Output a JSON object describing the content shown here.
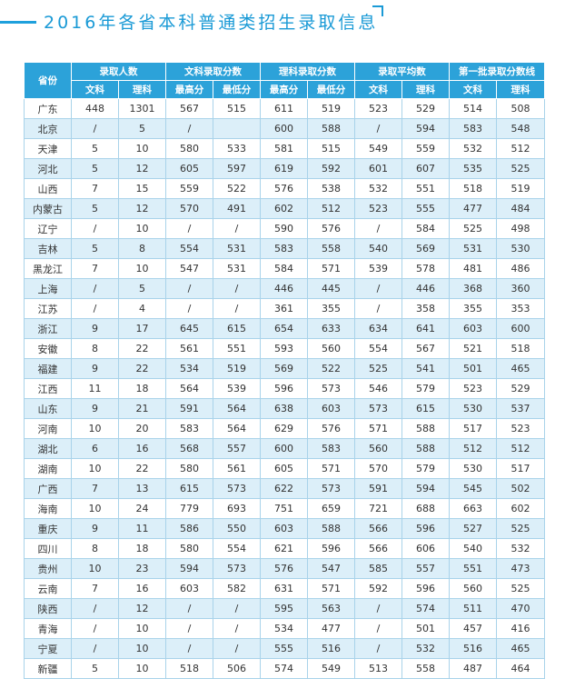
{
  "title": "2016年各省本科普通类招生录取信息",
  "header": {
    "province": "省份",
    "groups": [
      "录取人数",
      "文科录取分数",
      "理科录取分数",
      "录取平均数",
      "第一批录取分数线"
    ],
    "sub": [
      "文科",
      "理科",
      "最高分",
      "最低分",
      "最高分",
      "最低分",
      "文科",
      "理科",
      "文科",
      "理科"
    ]
  },
  "rows": [
    [
      "广东",
      "448",
      "1301",
      "567",
      "515",
      "611",
      "519",
      "523",
      "529",
      "514",
      "508"
    ],
    [
      "北京",
      "/",
      "5",
      "/",
      "",
      "600",
      "588",
      "/",
      "594",
      "583",
      "548"
    ],
    [
      "天津",
      "5",
      "10",
      "580",
      "533",
      "581",
      "515",
      "549",
      "559",
      "532",
      "512"
    ],
    [
      "河北",
      "5",
      "12",
      "605",
      "597",
      "619",
      "592",
      "601",
      "607",
      "535",
      "525"
    ],
    [
      "山西",
      "7",
      "15",
      "559",
      "522",
      "576",
      "538",
      "532",
      "551",
      "518",
      "519"
    ],
    [
      "内蒙古",
      "5",
      "12",
      "570",
      "491",
      "602",
      "512",
      "523",
      "555",
      "477",
      "484"
    ],
    [
      "辽宁",
      "/",
      "10",
      "/",
      "/",
      "590",
      "576",
      "/",
      "584",
      "525",
      "498"
    ],
    [
      "吉林",
      "5",
      "8",
      "554",
      "531",
      "583",
      "558",
      "540",
      "569",
      "531",
      "530"
    ],
    [
      "黑龙江",
      "7",
      "10",
      "547",
      "531",
      "584",
      "571",
      "539",
      "578",
      "481",
      "486"
    ],
    [
      "上海",
      "/",
      "5",
      "/",
      "/",
      "446",
      "445",
      "/",
      "446",
      "368",
      "360"
    ],
    [
      "江苏",
      "/",
      "4",
      "/",
      "/",
      "361",
      "355",
      "/",
      "358",
      "355",
      "353"
    ],
    [
      "浙江",
      "9",
      "17",
      "645",
      "615",
      "654",
      "633",
      "634",
      "641",
      "603",
      "600"
    ],
    [
      "安徽",
      "8",
      "22",
      "561",
      "551",
      "593",
      "560",
      "554",
      "567",
      "521",
      "518"
    ],
    [
      "福建",
      "9",
      "22",
      "534",
      "519",
      "569",
      "522",
      "525",
      "541",
      "501",
      "465"
    ],
    [
      "江西",
      "11",
      "18",
      "564",
      "539",
      "596",
      "573",
      "546",
      "579",
      "523",
      "529"
    ],
    [
      "山东",
      "9",
      "21",
      "591",
      "564",
      "638",
      "603",
      "573",
      "615",
      "530",
      "537"
    ],
    [
      "河南",
      "10",
      "20",
      "583",
      "564",
      "629",
      "576",
      "571",
      "588",
      "517",
      "523"
    ],
    [
      "湖北",
      "6",
      "16",
      "568",
      "557",
      "600",
      "583",
      "560",
      "588",
      "512",
      "512"
    ],
    [
      "湖南",
      "10",
      "22",
      "580",
      "561",
      "605",
      "571",
      "570",
      "579",
      "530",
      "517"
    ],
    [
      "广西",
      "7",
      "13",
      "615",
      "573",
      "622",
      "573",
      "591",
      "594",
      "545",
      "502"
    ],
    [
      "海南",
      "10",
      "24",
      "779",
      "693",
      "751",
      "659",
      "721",
      "688",
      "663",
      "602"
    ],
    [
      "重庆",
      "9",
      "11",
      "586",
      "550",
      "603",
      "588",
      "566",
      "596",
      "527",
      "525"
    ],
    [
      "四川",
      "8",
      "18",
      "580",
      "554",
      "621",
      "596",
      "566",
      "606",
      "540",
      "532"
    ],
    [
      "贵州",
      "10",
      "23",
      "594",
      "573",
      "576",
      "547",
      "585",
      "557",
      "551",
      "473"
    ],
    [
      "云南",
      "7",
      "16",
      "603",
      "582",
      "631",
      "571",
      "592",
      "596",
      "560",
      "525"
    ],
    [
      "陕西",
      "/",
      "12",
      "/",
      "/",
      "595",
      "563",
      "/",
      "574",
      "511",
      "470"
    ],
    [
      "青海",
      "/",
      "10",
      "/",
      "/",
      "534",
      "477",
      "/",
      "501",
      "457",
      "416"
    ],
    [
      "宁夏",
      "/",
      "10",
      "/",
      "/",
      "555",
      "516",
      "/",
      "532",
      "516",
      "465"
    ],
    [
      "新疆",
      "5",
      "10",
      "518",
      "506",
      "574",
      "549",
      "513",
      "558",
      "487",
      "464"
    ]
  ]
}
